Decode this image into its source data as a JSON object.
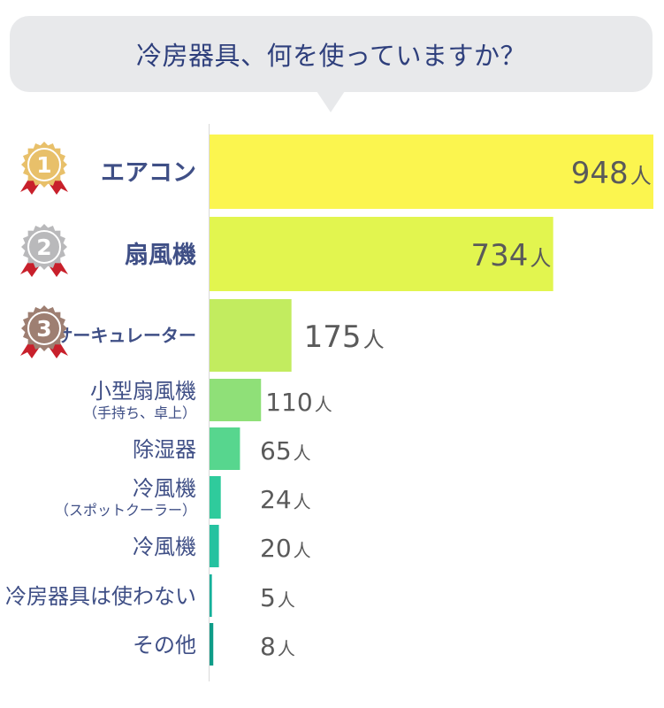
{
  "title": "冷房器具、何を使っていますか？",
  "chart_data": {
    "type": "bar",
    "orientation": "horizontal",
    "title": "冷房器具、何を使っていますか？",
    "unit": "人",
    "categories": [
      "エアコン",
      "扇風機",
      "サーキュレーター",
      "小型扇風機（手持ち、卓上）",
      "除湿器",
      "冷風機（スポットクーラー）",
      "冷風機",
      "冷房器具は使わない",
      "その他"
    ],
    "category_lines": [
      [
        "エアコン"
      ],
      [
        "扇風機"
      ],
      [
        "サーキュレーター"
      ],
      [
        "小型扇風機",
        "（手持ち、卓上）"
      ],
      [
        "除湿器"
      ],
      [
        "冷風機",
        "（スポットクーラー）"
      ],
      [
        "冷風機"
      ],
      [
        "冷房器具は使わない"
      ],
      [
        "その他"
      ]
    ],
    "values": [
      948,
      734,
      175,
      110,
      65,
      24,
      20,
      5,
      8
    ],
    "ranks": [
      "1",
      "2",
      "3"
    ],
    "colors": [
      "#fbf54f",
      "#e2f54f",
      "#c2ec5f",
      "#8fe078",
      "#57d68e",
      "#2fcb9c",
      "#25c2a0",
      "#15b09a",
      "#0f9c88"
    ],
    "medal_colors": [
      "#e8c06a",
      "#b9b9bb",
      "#9e7f72"
    ],
    "ribbon_color": "#c8202b",
    "xlim": [
      0,
      948
    ],
    "grid": false
  }
}
